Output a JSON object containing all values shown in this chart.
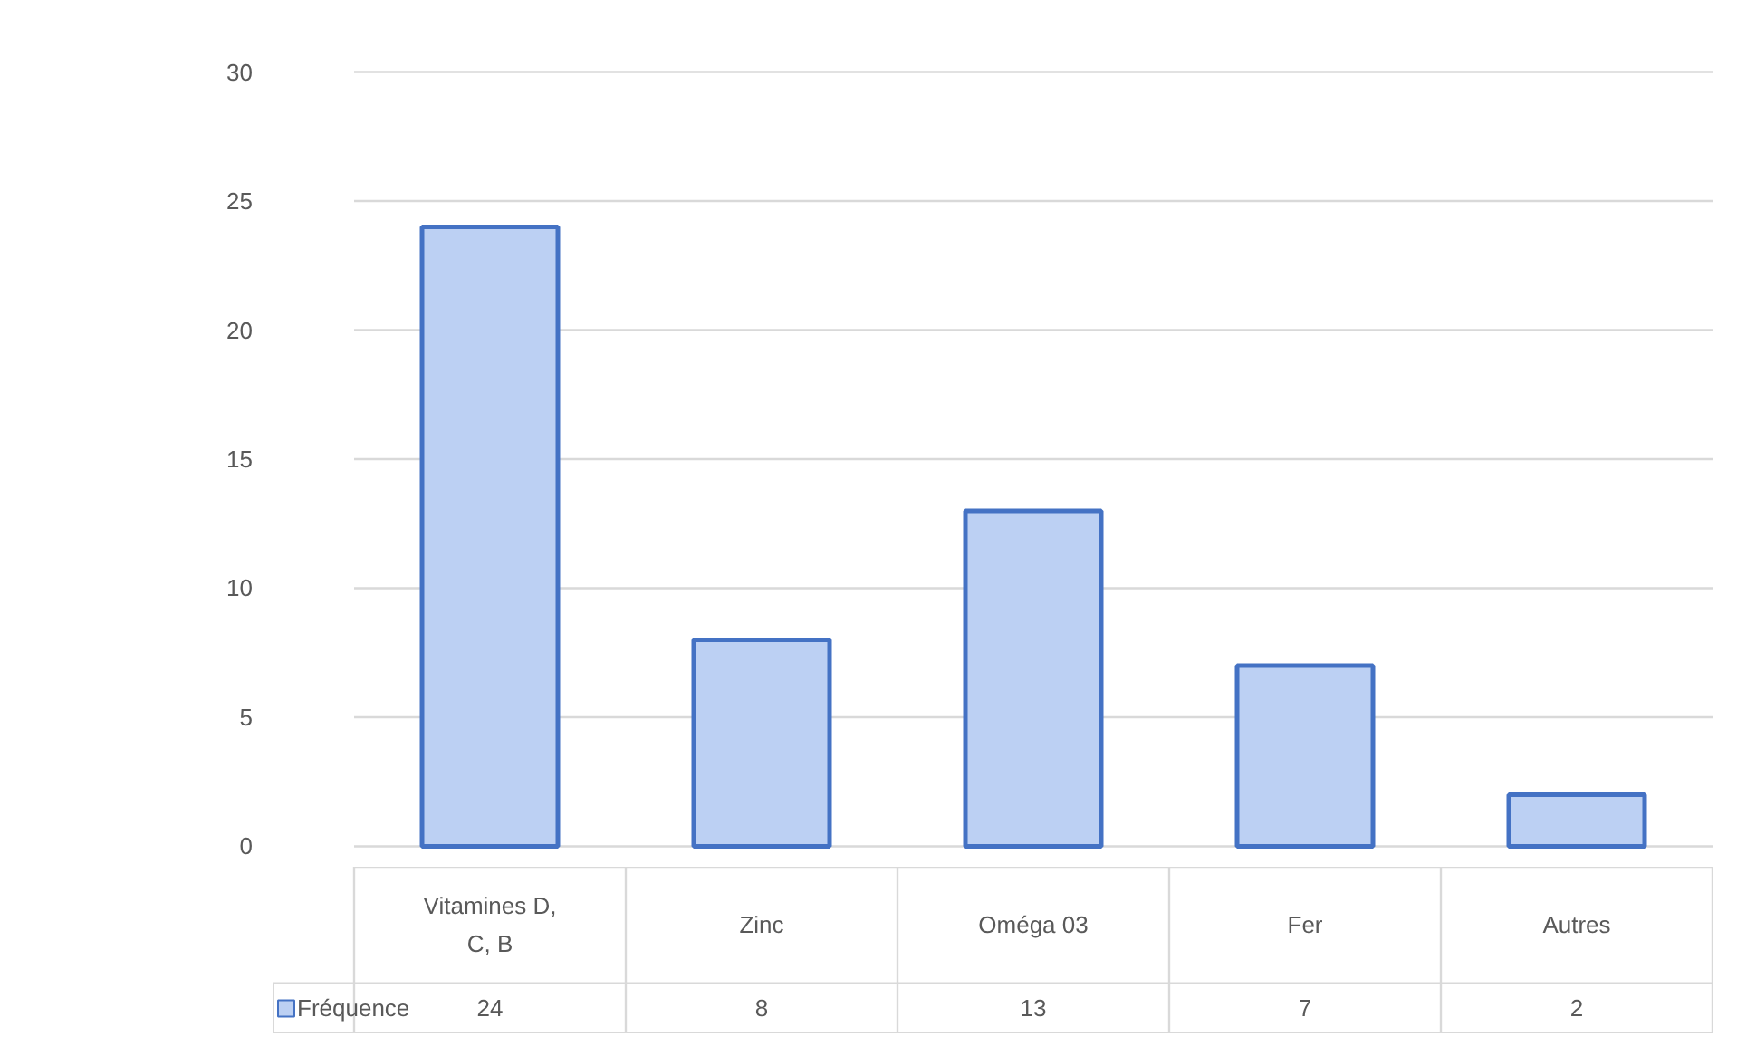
{
  "chart_data": {
    "type": "bar",
    "categories": [
      "Vitamines D, C, B",
      "Zinc",
      "Oméga 03",
      "Fer",
      "Autres"
    ],
    "series": [
      {
        "name": "Fréquence",
        "color": "#bcd0f3",
        "values": [
          24,
          8,
          13,
          7,
          2
        ]
      }
    ],
    "ylim": [
      0,
      30
    ],
    "yticks": [
      0,
      5,
      10,
      15,
      20,
      25,
      30
    ],
    "grid": "y",
    "data_labels": true,
    "legend": "bottom"
  }
}
